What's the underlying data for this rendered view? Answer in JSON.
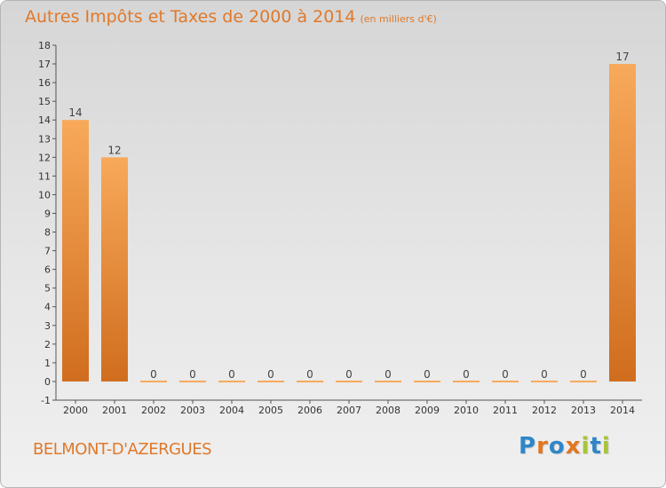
{
  "header": {
    "title": "Autres Impôts et Taxes de 2000 à 2014",
    "unit": "(en milliers d'€)"
  },
  "footer": {
    "commune": "BELMONT-D'AZERGUES",
    "logo_letters": [
      "P",
      "r",
      "o",
      "x",
      "i",
      "t",
      "i"
    ]
  },
  "colors": {
    "title": "#e0792a",
    "bar_light": "#f8a95a",
    "bar_dark": "#d06d1e",
    "axis": "#555555"
  },
  "chart_data": {
    "type": "bar",
    "categories": [
      "2000",
      "2001",
      "2002",
      "2003",
      "2004",
      "2005",
      "2006",
      "2007",
      "2008",
      "2009",
      "2010",
      "2011",
      "2012",
      "2013",
      "2014"
    ],
    "values": [
      14,
      12,
      0,
      0,
      0,
      0,
      0,
      0,
      0,
      0,
      0,
      0,
      0,
      0,
      17
    ],
    "data_labels": [
      "14",
      "12",
      "0",
      "0",
      "0",
      "0",
      "0",
      "0",
      "0",
      "0",
      "0",
      "0",
      "0",
      "0",
      "17"
    ],
    "yticks": [
      -1,
      0,
      1,
      2,
      3,
      4,
      5,
      6,
      7,
      8,
      9,
      10,
      11,
      12,
      13,
      14,
      15,
      16,
      17,
      18
    ],
    "ylim": [
      -1,
      18
    ],
    "title": "Autres Impôts et Taxes de 2000 à 2014",
    "xlabel": "",
    "ylabel": "",
    "grid": false,
    "legend": "none"
  }
}
